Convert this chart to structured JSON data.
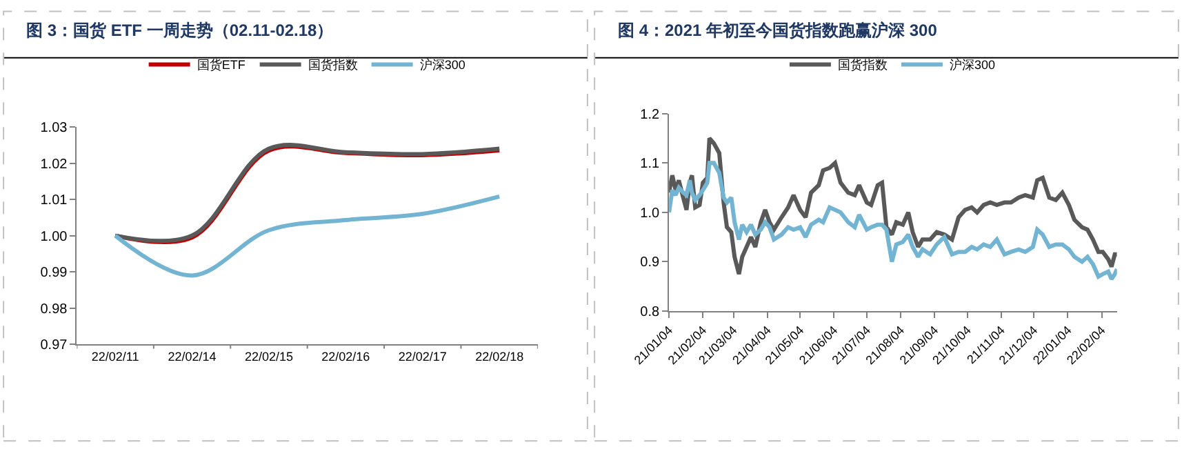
{
  "chart_data": [
    {
      "type": "line",
      "title": "图 3：国货 ETF 一周走势（02.11-02.18）",
      "categories": [
        "22/02/11",
        "22/02/14",
        "22/02/15",
        "22/02/16",
        "22/02/17",
        "22/02/18"
      ],
      "series": [
        {
          "name": "国货ETF",
          "color": "#c00000",
          "values": [
            1.0,
            0.9995,
            1.0235,
            1.0228,
            1.0222,
            1.0235
          ]
        },
        {
          "name": "国货指数",
          "color": "#595959",
          "values": [
            1.0,
            1.0,
            1.024,
            1.023,
            1.0225,
            1.024
          ]
        },
        {
          "name": "沪深300",
          "color": "#72b4d1",
          "values": [
            1.0,
            0.989,
            1.0015,
            1.0043,
            1.006,
            1.0108
          ]
        }
      ],
      "ylim": [
        0.97,
        1.03
      ],
      "yticks": [
        {
          "value": 0.97,
          "label": "0.97"
        },
        {
          "value": 0.98,
          "label": "0.98"
        },
        {
          "value": 0.99,
          "label": "0.99"
        },
        {
          "value": 1.0,
          "label": "1.00"
        },
        {
          "value": 1.01,
          "label": "1.01"
        },
        {
          "value": 1.02,
          "label": "1.02"
        },
        {
          "value": 1.03,
          "label": "1.03"
        }
      ],
      "legend": "top"
    },
    {
      "type": "line",
      "title": "图 4：2021 年初至今国货指数跑赢沪深 300",
      "x": [
        "2021-01-04",
        "2021-01-07",
        "2021-01-10",
        "2021-01-13",
        "2021-01-17",
        "2021-01-20",
        "2021-01-23",
        "2021-01-25",
        "2021-01-28",
        "2021-02-01",
        "2021-02-04",
        "2021-02-08",
        "2021-02-10",
        "2021-02-14",
        "2021-02-19",
        "2021-02-23",
        "2021-02-26",
        "2021-03-02",
        "2021-03-05",
        "2021-03-09",
        "2021-03-12",
        "2021-03-16",
        "2021-03-20",
        "2021-03-24",
        "2021-03-29",
        "2021-04-02",
        "2021-04-06",
        "2021-04-10",
        "2021-04-17",
        "2021-04-23",
        "2021-04-28",
        "2021-05-04",
        "2021-05-09",
        "2021-05-14",
        "2021-05-21",
        "2021-05-25",
        "2021-05-31",
        "2021-06-05",
        "2021-06-10",
        "2021-06-17",
        "2021-06-23",
        "2021-06-27",
        "2021-07-04",
        "2021-07-08",
        "2021-07-14",
        "2021-07-18",
        "2021-07-22",
        "2021-07-27",
        "2021-07-31",
        "2021-08-06",
        "2021-08-11",
        "2021-08-15",
        "2021-08-20",
        "2021-08-24",
        "2021-08-31",
        "2021-09-06",
        "2021-09-13",
        "2021-09-20",
        "2021-09-26",
        "2021-10-02",
        "2021-10-08",
        "2021-10-13",
        "2021-10-19",
        "2021-10-25",
        "2021-10-31",
        "2021-11-07",
        "2021-11-13",
        "2021-11-20",
        "2021-11-26",
        "2021-12-03",
        "2021-12-07",
        "2021-12-12",
        "2021-12-18",
        "2021-12-24",
        "2021-12-30",
        "2022-01-05",
        "2022-01-10",
        "2022-01-17",
        "2022-01-22",
        "2022-01-27",
        "2022-02-01",
        "2022-02-05",
        "2022-02-10",
        "2022-02-13",
        "2022-02-16",
        "2022-02-18"
      ],
      "series": [
        {
          "name": "国货指数",
          "color": "#595959",
          "values": [
            1.04,
            1.075,
            1.045,
            1.065,
            1.03,
            1.005,
            1.06,
            1.075,
            1.01,
            1.015,
            1.06,
            1.07,
            1.15,
            1.14,
            1.12,
            1.02,
            0.97,
            0.96,
            0.91,
            0.875,
            0.91,
            0.93,
            0.95,
            0.93,
            0.98,
            1.005,
            0.98,
            0.965,
            0.99,
            1.01,
            1.035,
            1.005,
            0.99,
            1.04,
            1.055,
            1.085,
            1.09,
            1.1,
            1.06,
            1.04,
            1.035,
            1.055,
            1.02,
            1.015,
            1.055,
            1.06,
            0.97,
            0.955,
            0.98,
            0.975,
            1.0,
            0.96,
            0.93,
            0.945,
            0.945,
            0.96,
            0.955,
            0.945,
            0.99,
            1.005,
            1.01,
            1.0,
            1.015,
            1.02,
            1.015,
            1.02,
            1.02,
            1.03,
            1.035,
            1.03,
            1.065,
            1.07,
            1.03,
            1.025,
            1.04,
            1.015,
            0.985,
            0.97,
            0.965,
            0.945,
            0.92,
            0.92,
            0.905,
            0.89,
            0.915,
            0.915
          ]
        },
        {
          "name": "沪深300",
          "color": "#72b4d1",
          "values": [
            1.0,
            1.045,
            1.035,
            1.05,
            1.04,
            1.035,
            1.065,
            1.04,
            1.025,
            1.035,
            1.045,
            1.06,
            1.1,
            1.1,
            1.08,
            1.03,
            1.02,
            1.03,
            0.98,
            0.945,
            0.975,
            0.96,
            0.975,
            0.955,
            0.965,
            0.98,
            0.97,
            0.945,
            0.955,
            0.97,
            0.965,
            0.97,
            0.95,
            0.975,
            0.985,
            0.98,
            1.01,
            1.005,
            1.0,
            0.98,
            0.97,
            0.995,
            0.965,
            0.97,
            0.975,
            0.975,
            0.965,
            0.9,
            0.935,
            0.94,
            0.955,
            0.93,
            0.91,
            0.925,
            0.915,
            0.935,
            0.95,
            0.915,
            0.92,
            0.92,
            0.93,
            0.925,
            0.935,
            0.93,
            0.945,
            0.915,
            0.92,
            0.925,
            0.92,
            0.93,
            0.965,
            0.955,
            0.93,
            0.935,
            0.935,
            0.925,
            0.91,
            0.9,
            0.91,
            0.895,
            0.87,
            0.875,
            0.88,
            0.865,
            0.875,
            0.885
          ]
        }
      ],
      "xlim": [
        "2021-01-04",
        "2022-02-18"
      ],
      "xticks": [
        {
          "value": "2021-01-04",
          "label": "21/01/04"
        },
        {
          "value": "2021-02-04",
          "label": "21/02/04"
        },
        {
          "value": "2021-03-04",
          "label": "21/03/04"
        },
        {
          "value": "2021-04-04",
          "label": "21/04/04"
        },
        {
          "value": "2021-05-04",
          "label": "21/05/04"
        },
        {
          "value": "2021-06-04",
          "label": "21/06/04"
        },
        {
          "value": "2021-07-04",
          "label": "21/07/04"
        },
        {
          "value": "2021-08-04",
          "label": "21/08/04"
        },
        {
          "value": "2021-09-04",
          "label": "21/09/04"
        },
        {
          "value": "2021-10-04",
          "label": "21/10/04"
        },
        {
          "value": "2021-11-04",
          "label": "21/11/04"
        },
        {
          "value": "2021-12-04",
          "label": "21/12/04"
        },
        {
          "value": "2022-01-04",
          "label": "22/01/04"
        },
        {
          "value": "2022-02-04",
          "label": "22/02/04"
        }
      ],
      "ylim": [
        0.8,
        1.2
      ],
      "yticks": [
        {
          "value": 0.8,
          "label": "0.8"
        },
        {
          "value": 0.9,
          "label": "0.9"
        },
        {
          "value": 1.0,
          "label": "1.0"
        },
        {
          "value": 1.1,
          "label": "1.1"
        },
        {
          "value": 1.2,
          "label": "1.2"
        }
      ],
      "legend": "top"
    }
  ]
}
